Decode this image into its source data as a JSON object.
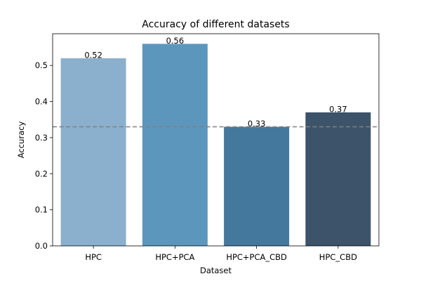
{
  "chart_data": {
    "type": "bar",
    "title": "Accuracy of different datasets",
    "xlabel": "Dataset",
    "ylabel": "Accuracy",
    "categories": [
      "HPC",
      "HPC+PCA",
      "HPC+PCA_CBD",
      "HPC_CBD"
    ],
    "values": [
      0.52,
      0.56,
      0.33,
      0.37
    ],
    "data_labels": [
      "0.52",
      "0.56",
      "0.33",
      "0.37"
    ],
    "bar_colors": [
      "#8ab0cd",
      "#5d96bd",
      "#44789c",
      "#3c5369"
    ],
    "ylim": [
      0,
      0.588
    ],
    "yticks": [
      0.0,
      0.1,
      0.2,
      0.3,
      0.4,
      0.5
    ],
    "ytick_labels": [
      "0.0",
      "0.1",
      "0.2",
      "0.3",
      "0.4",
      "0.5"
    ],
    "reference_line": {
      "y": 0.33,
      "style": "dashed",
      "color": "#808080"
    },
    "grid": false,
    "legend": "none"
  }
}
